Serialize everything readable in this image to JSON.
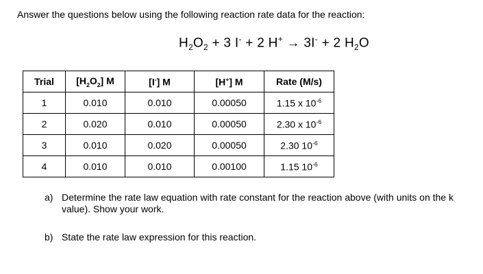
{
  "intro_text": "Answer the questions below using the following reaction rate data for the reaction:",
  "equation": {
    "segments": [
      {
        "t": "H"
      },
      {
        "t": "2",
        "s": "sub"
      },
      {
        "t": "O"
      },
      {
        "t": "2",
        "s": "sub"
      },
      {
        "t": " + 3 I"
      },
      {
        "t": "-",
        "s": "sup"
      },
      {
        "t": " + 2 H"
      },
      {
        "t": "+",
        "s": "sup"
      },
      {
        "t": " → 3I"
      },
      {
        "t": "-",
        "s": "sup"
      },
      {
        "t": " + 2 H"
      },
      {
        "t": "2",
        "s": "sub"
      },
      {
        "t": "O"
      }
    ]
  },
  "table": {
    "headers": {
      "trial": "Trial",
      "h2o2": [
        {
          "t": "[H"
        },
        {
          "t": "2",
          "s": "sub"
        },
        {
          "t": "O"
        },
        {
          "t": "2",
          "s": "sub"
        },
        {
          "t": "] M"
        }
      ],
      "iodide": [
        {
          "t": "[I"
        },
        {
          "t": "-",
          "s": "sup"
        },
        {
          "t": "] M"
        }
      ],
      "hplus": [
        {
          "t": "[H"
        },
        {
          "t": "+",
          "s": "sup"
        },
        {
          "t": "] M"
        }
      ],
      "rate": "Rate (M/s)"
    },
    "rows": [
      {
        "trial": "1",
        "h2o2": "0.010",
        "iodide": "0.010",
        "hplus": "0.00050",
        "rate": [
          {
            "t": "1.15 x 10"
          },
          {
            "t": "-6",
            "s": "sup"
          }
        ]
      },
      {
        "trial": "2",
        "h2o2": "0.020",
        "iodide": "0.010",
        "hplus": "0.00050",
        "rate": [
          {
            "t": "2.30 x 10"
          },
          {
            "t": "-6",
            "s": "sup"
          }
        ]
      },
      {
        "trial": "3",
        "h2o2": "0.010",
        "iodide": "0.020",
        "hplus": "0.00050",
        "rate": [
          {
            "t": "2.30 10"
          },
          {
            "t": "-6",
            "s": "sup"
          }
        ]
      },
      {
        "trial": "4",
        "h2o2": "0.010",
        "iodide": "0.010",
        "hplus": "0.00100",
        "rate": [
          {
            "t": "1.15 10"
          },
          {
            "t": "-6",
            "s": "sup"
          }
        ]
      }
    ]
  },
  "questions": {
    "a": {
      "label": "a)",
      "line1": "Determine the rate law equation with rate constant for the reaction above (with units on the k",
      "line2": "value). Show your work."
    },
    "b": {
      "label": "b)",
      "text": "State the rate law expression for this reaction."
    }
  }
}
